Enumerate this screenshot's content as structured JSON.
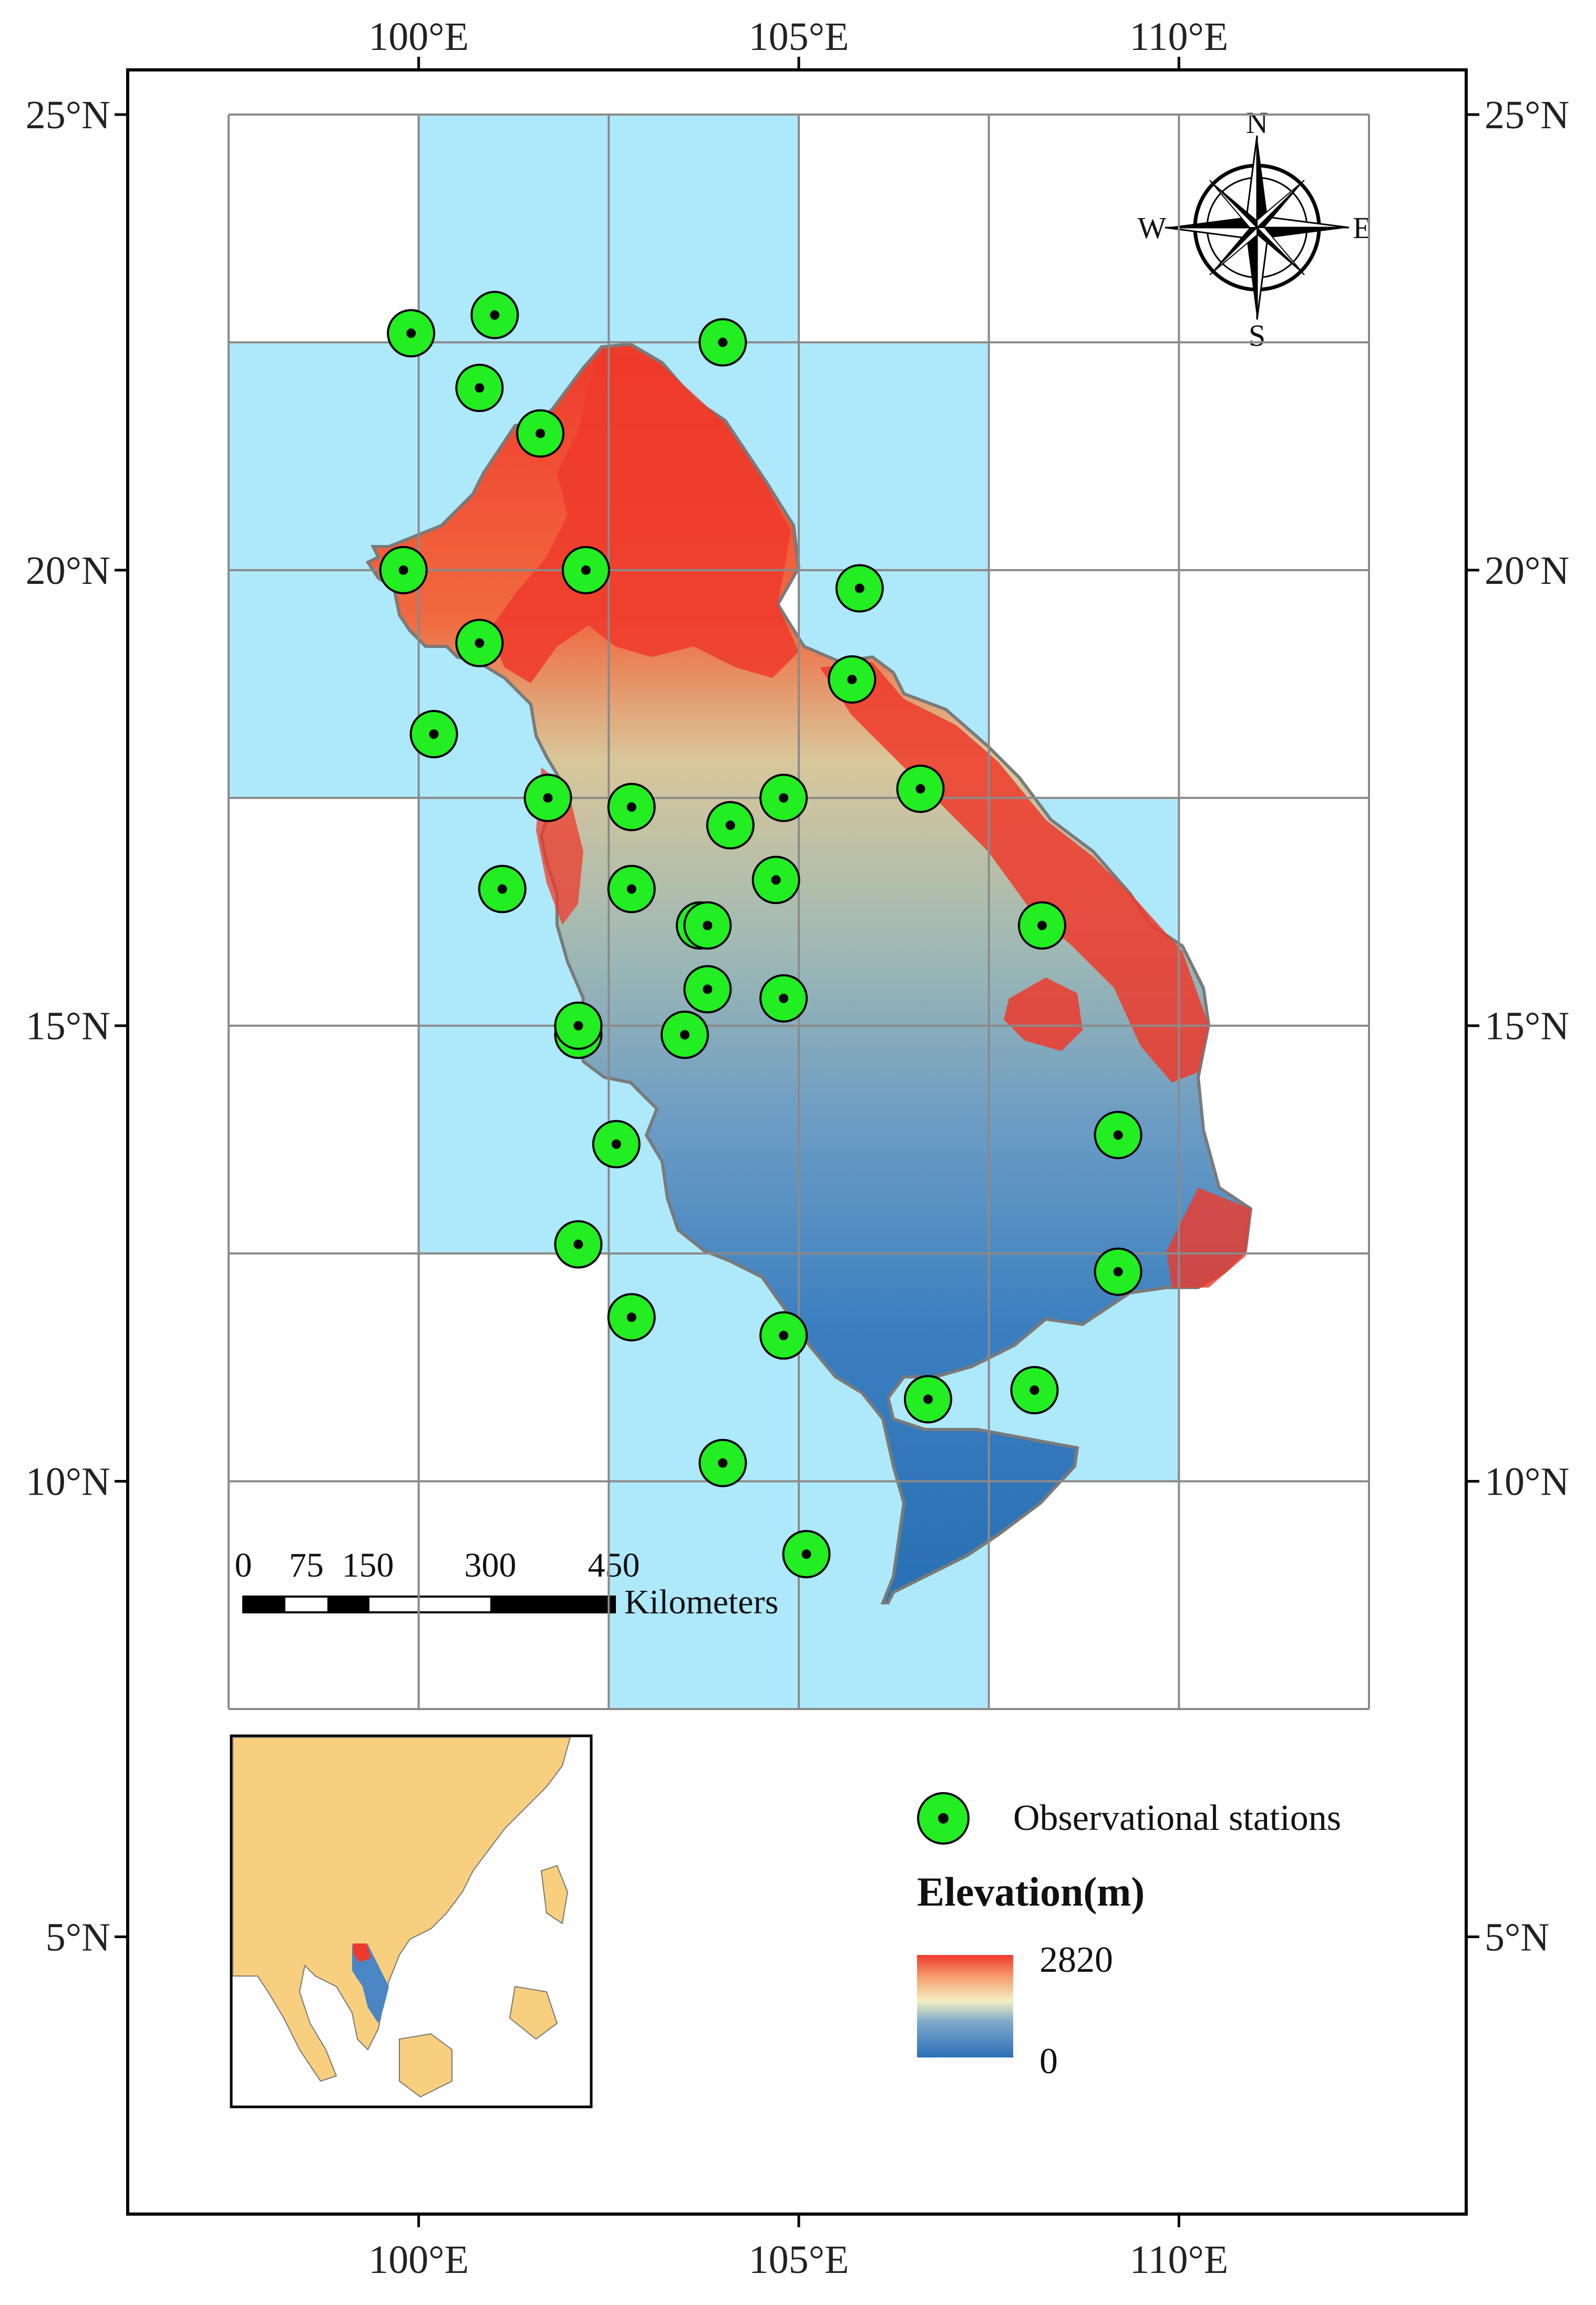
{
  "axes": {
    "x_ticks": [
      {
        "value": 100,
        "label": "100°E"
      },
      {
        "value": 105,
        "label": "105°E"
      },
      {
        "value": 110,
        "label": "110°E"
      }
    ],
    "y_ticks": [
      {
        "value": 25,
        "label": "25°N"
      },
      {
        "value": 20,
        "label": "20°N"
      },
      {
        "value": 15,
        "label": "15°N"
      },
      {
        "value": 10,
        "label": "10°N"
      },
      {
        "value": 5,
        "label": "5°N"
      }
    ],
    "lon_range": [
      97.5,
      112.5
    ],
    "lat_range": [
      7.5,
      25.0
    ]
  },
  "grid": {
    "lon_lines": [
      97.5,
      100,
      102.5,
      105,
      107.5,
      110,
      112.5
    ],
    "lat_lines": [
      7.5,
      10,
      12.5,
      15,
      17.5,
      20,
      22.5,
      25
    ],
    "cells_highlighted": [
      [
        100,
        22.5
      ],
      [
        97.5,
        20
      ],
      [
        100,
        20
      ],
      [
        97.5,
        17.5
      ],
      [
        100,
        17.5
      ],
      [
        102.5,
        22.5
      ],
      [
        102.5,
        20
      ],
      [
        105,
        17.5
      ],
      [
        105,
        20
      ],
      [
        107.5,
        15
      ],
      [
        100,
        15
      ],
      [
        102.5,
        15
      ],
      [
        105,
        15
      ],
      [
        100,
        12.5
      ],
      [
        102.5,
        12.5
      ],
      [
        105,
        12.5
      ],
      [
        107.5,
        12.5
      ],
      [
        102.5,
        10
      ],
      [
        105,
        10
      ],
      [
        107.5,
        10
      ],
      [
        102.5,
        7.5
      ],
      [
        105,
        7.5
      ]
    ],
    "highlight_color": "#aee9fb",
    "line_color": "#8a8a8a"
  },
  "compass": {
    "north": "N",
    "south": "S",
    "east": "E",
    "west": "W"
  },
  "scale_bar": {
    "tick_labels": [
      "0",
      "75",
      "150",
      "300",
      "450"
    ],
    "unit": "Kilometers"
  },
  "legend": {
    "stations_label": "Observational stations",
    "elevation_title": "Elevation(m)",
    "elevation_max": "2820",
    "elevation_min": "0",
    "station_color": "#22ee22"
  },
  "stations": [
    [
      99.9,
      22.6
    ],
    [
      101.0,
      22.8
    ],
    [
      104.0,
      22.5
    ],
    [
      100.8,
      22.0
    ],
    [
      101.6,
      21.5
    ],
    [
      99.8,
      20.0
    ],
    [
      102.2,
      20.0
    ],
    [
      105.8,
      19.8
    ],
    [
      100.8,
      19.2
    ],
    [
      105.7,
      18.8
    ],
    [
      100.2,
      18.2
    ],
    [
      101.7,
      17.5
    ],
    [
      102.8,
      17.4
    ],
    [
      104.8,
      17.5
    ],
    [
      106.6,
      17.6
    ],
    [
      104.1,
      17.2
    ],
    [
      101.1,
      16.5
    ],
    [
      102.8,
      16.5
    ],
    [
      104.7,
      16.6
    ],
    [
      103.7,
      16.1
    ],
    [
      103.8,
      16.1
    ],
    [
      108.2,
      16.1
    ],
    [
      103.8,
      15.4
    ],
    [
      104.8,
      15.3
    ],
    [
      102.1,
      14.9
    ],
    [
      102.1,
      15.0
    ],
    [
      103.5,
      14.9
    ],
    [
      109.2,
      13.8
    ],
    [
      102.6,
      13.7
    ],
    [
      102.1,
      12.6
    ],
    [
      109.2,
      12.3
    ],
    [
      102.8,
      11.8
    ],
    [
      104.8,
      11.6
    ],
    [
      106.7,
      10.9
    ],
    [
      108.1,
      11.0
    ],
    [
      104.0,
      10.2
    ],
    [
      105.1,
      9.2
    ]
  ]
}
